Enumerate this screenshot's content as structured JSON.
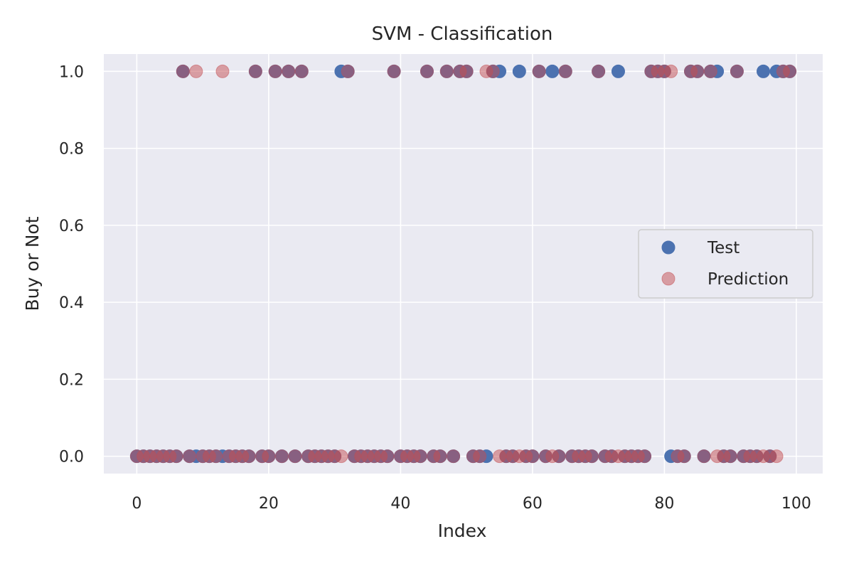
{
  "chart_data": {
    "type": "scatter",
    "title": "SVM - Classification",
    "xlabel": "Index",
    "ylabel": "Buy or Not",
    "xlim": [
      -5,
      104
    ],
    "ylim": [
      -0.045,
      1.045
    ],
    "xticks": [
      0,
      20,
      40,
      60,
      80,
      100
    ],
    "xtick_labels": [
      "0",
      "20",
      "40",
      "60",
      "80",
      "100"
    ],
    "yticks": [
      0.0,
      0.2,
      0.4,
      0.6,
      0.8,
      1.0
    ],
    "ytick_labels": [
      "0.0",
      "0.2",
      "0.4",
      "0.6",
      "0.8",
      "1.0"
    ],
    "grid": true,
    "legend_position": "center-right",
    "background": "#eaeaf2",
    "series": [
      {
        "name": "Test",
        "color": "#4c72b0",
        "opacity": 1.0,
        "x": [
          0,
          1,
          2,
          3,
          4,
          5,
          6,
          7,
          8,
          9,
          10,
          11,
          12,
          13,
          14,
          15,
          16,
          17,
          18,
          19,
          20,
          21,
          22,
          23,
          24,
          25,
          26,
          27,
          28,
          29,
          30,
          31,
          32,
          33,
          34,
          35,
          36,
          37,
          38,
          39,
          40,
          41,
          42,
          43,
          44,
          45,
          46,
          47,
          48,
          49,
          50,
          51,
          52,
          53,
          54,
          55,
          56,
          57,
          58,
          59,
          60,
          61,
          62,
          63,
          64,
          65,
          66,
          67,
          68,
          69,
          70,
          71,
          72,
          73,
          74,
          75,
          76,
          77,
          78,
          79,
          80,
          81,
          82,
          83,
          84,
          85,
          86,
          87,
          88,
          89,
          90,
          91,
          92,
          93,
          94,
          95,
          96,
          97,
          98,
          99
        ],
        "y": [
          0,
          0,
          0,
          0,
          0,
          0,
          0,
          1,
          0,
          0,
          0,
          0,
          0,
          0,
          0,
          0,
          0,
          0,
          1,
          0,
          0,
          1,
          0,
          1,
          0,
          1,
          0,
          0,
          0,
          0,
          0,
          1,
          1,
          0,
          0,
          0,
          0,
          0,
          0,
          1,
          0,
          0,
          0,
          0,
          1,
          0,
          0,
          1,
          0,
          1,
          1,
          0,
          0,
          0,
          1,
          1,
          0,
          0,
          1,
          0,
          0,
          1,
          0,
          1,
          0,
          1,
          0,
          0,
          0,
          0,
          1,
          0,
          0,
          1,
          0,
          0,
          0,
          0,
          1,
          1,
          1,
          0,
          0,
          0,
          1,
          1,
          0,
          1,
          1,
          0,
          0,
          1,
          0,
          0,
          0,
          1,
          0,
          1,
          1,
          1
        ]
      },
      {
        "name": "Prediction",
        "color": "#c44e52",
        "opacity": 0.5,
        "x": [
          0,
          1,
          2,
          3,
          4,
          5,
          6,
          7,
          8,
          9,
          10,
          11,
          12,
          13,
          14,
          15,
          16,
          17,
          18,
          19,
          20,
          21,
          22,
          23,
          24,
          25,
          26,
          27,
          28,
          29,
          30,
          31,
          32,
          33,
          34,
          35,
          36,
          37,
          38,
          39,
          40,
          41,
          42,
          43,
          44,
          45,
          46,
          47,
          48,
          49,
          50,
          51,
          52,
          53,
          54,
          55,
          56,
          57,
          58,
          59,
          60,
          61,
          62,
          63,
          64,
          65,
          66,
          67,
          68,
          69,
          70,
          71,
          72,
          73,
          74,
          75,
          76,
          77,
          78,
          79,
          80,
          81,
          82,
          83,
          84,
          85,
          86,
          87,
          88,
          89,
          90,
          91,
          92,
          93,
          94,
          95,
          96,
          97,
          98,
          99
        ],
        "y": [
          0,
          0,
          0,
          0,
          0,
          0,
          0,
          1,
          0,
          1,
          0,
          0,
          0,
          1,
          0,
          0,
          0,
          0,
          1,
          0,
          0,
          1,
          0,
          1,
          0,
          1,
          0,
          0,
          0,
          0,
          0,
          0,
          1,
          0,
          0,
          0,
          0,
          0,
          0,
          1,
          0,
          0,
          0,
          0,
          1,
          0,
          0,
          1,
          0,
          1,
          1,
          0,
          0,
          1,
          1,
          0,
          0,
          0,
          0,
          0,
          0,
          1,
          0,
          0,
          0,
          1,
          0,
          0,
          0,
          0,
          1,
          0,
          0,
          0,
          0,
          0,
          0,
          0,
          1,
          1,
          1,
          1,
          0,
          0,
          1,
          1,
          0,
          1,
          0,
          0,
          0,
          1,
          0,
          0,
          0,
          0,
          0,
          0,
          1,
          1
        ]
      }
    ]
  }
}
